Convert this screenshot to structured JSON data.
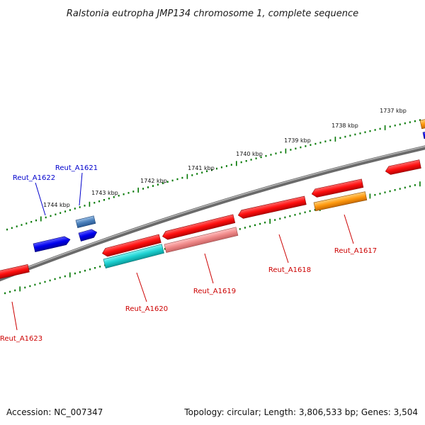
{
  "title": "Ralstonia eutropha JMP134 chromosome 1, complete sequence",
  "footer": {
    "accession": "Accession: NC_007347",
    "summary": "Topology: circular; Length: 3,806,533 bp; Genes: 3,504"
  },
  "colors": {
    "backbone": "#888888",
    "tick": "#007700",
    "label_forward": "#0000cc",
    "label_reverse": "#cc0000"
  },
  "ticks": [
    {
      "label": "1744 kbp",
      "kb": 1744
    },
    {
      "label": "1743 kbp",
      "kb": 1743
    },
    {
      "label": "1742 kbp",
      "kb": 1742
    },
    {
      "label": "1741 kbp",
      "kb": 1741
    },
    {
      "label": "1740 kbp",
      "kb": 1740
    },
    {
      "label": "1739 kbp",
      "kb": 1739
    },
    {
      "label": "1738 kbp",
      "kb": 1738
    },
    {
      "label": "1737 kbp",
      "kb": 1737
    }
  ],
  "genes": [
    {
      "name": "Reut_A1623",
      "strand": "reverse",
      "color": "#ff1a1a"
    },
    {
      "name": "Reut_A1622",
      "strand": "forward",
      "color": "#1a1aff"
    },
    {
      "name": "Reut_A1621",
      "strand": "forward",
      "color": "#1a1aff"
    },
    {
      "name": "Reut_A1620",
      "strand": "reverse",
      "color": "#ff1a1a"
    },
    {
      "name": "Reut_A1619",
      "strand": "reverse",
      "color": "#ff1a1a"
    },
    {
      "name": "Reut_A1618",
      "strand": "reverse",
      "color": "#ff1a1a"
    },
    {
      "name": "Reut_A1617",
      "strand": "reverse",
      "color": "#ff1a1a"
    }
  ]
}
